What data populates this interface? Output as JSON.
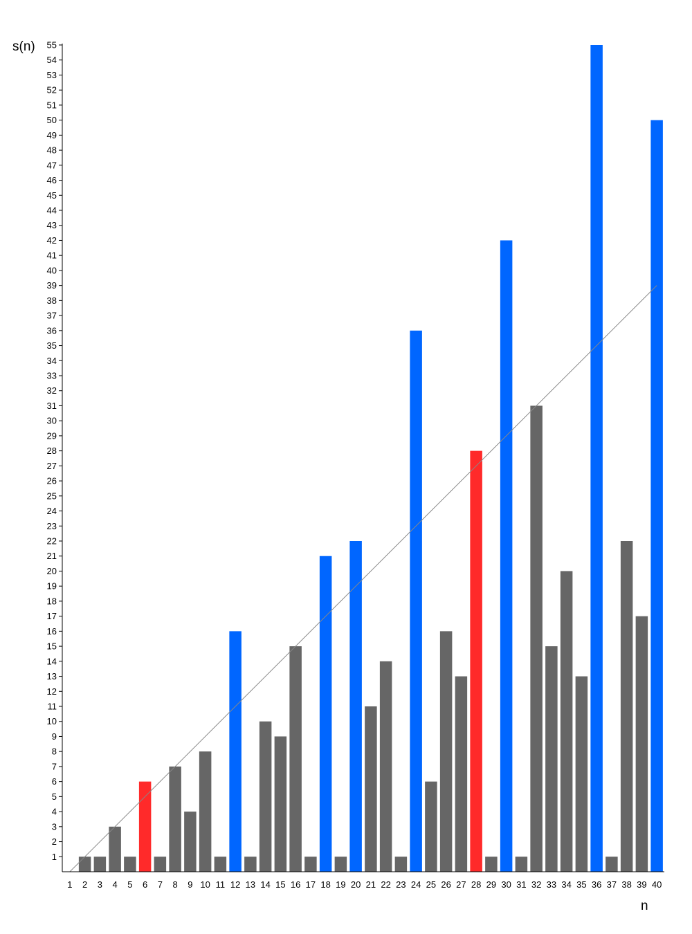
{
  "chart_data": {
    "type": "bar",
    "ylabel": "s(n)",
    "xlabel": "n",
    "ylim": [
      0,
      55
    ],
    "y_ticks": [
      1,
      2,
      3,
      4,
      5,
      6,
      7,
      8,
      9,
      10,
      11,
      12,
      13,
      14,
      15,
      16,
      17,
      18,
      19,
      20,
      21,
      22,
      23,
      24,
      25,
      26,
      27,
      28,
      29,
      30,
      31,
      32,
      33,
      34,
      35,
      36,
      37,
      38,
      39,
      40,
      41,
      42,
      43,
      44,
      45,
      46,
      47,
      48,
      49,
      50,
      51,
      52,
      53,
      54,
      55
    ],
    "categories": [
      "1",
      "2",
      "3",
      "4",
      "5",
      "6",
      "7",
      "8",
      "9",
      "10",
      "11",
      "12",
      "13",
      "14",
      "15",
      "16",
      "17",
      "18",
      "19",
      "20",
      "21",
      "22",
      "23",
      "24",
      "25",
      "26",
      "27",
      "28",
      "29",
      "30",
      "31",
      "32",
      "33",
      "34",
      "35",
      "36",
      "37",
      "38",
      "39",
      "40"
    ],
    "values": [
      0,
      1,
      1,
      3,
      1,
      6,
      1,
      7,
      4,
      8,
      1,
      16,
      1,
      10,
      9,
      15,
      1,
      21,
      1,
      22,
      11,
      14,
      1,
      36,
      6,
      16,
      13,
      28,
      1,
      42,
      1,
      31,
      15,
      20,
      13,
      55,
      1,
      22,
      17,
      50
    ],
    "bar_class": [
      "deficient",
      "deficient",
      "deficient",
      "deficient",
      "deficient",
      "perfect",
      "deficient",
      "deficient",
      "deficient",
      "deficient",
      "deficient",
      "abundant",
      "deficient",
      "deficient",
      "deficient",
      "deficient",
      "deficient",
      "abundant",
      "deficient",
      "abundant",
      "deficient",
      "deficient",
      "deficient",
      "abundant",
      "deficient",
      "deficient",
      "deficient",
      "perfect",
      "deficient",
      "abundant",
      "deficient",
      "deficient",
      "deficient",
      "deficient",
      "deficient",
      "abundant",
      "deficient",
      "deficient",
      "deficient",
      "abundant"
    ],
    "colors": {
      "deficient": "#666666",
      "perfect": "#ff2a2a",
      "abundant": "#0066ff",
      "reference_line": "#888888",
      "axis": "#000000"
    },
    "reference_line": "s(n) = n",
    "grid": false,
    "legend": "none"
  }
}
